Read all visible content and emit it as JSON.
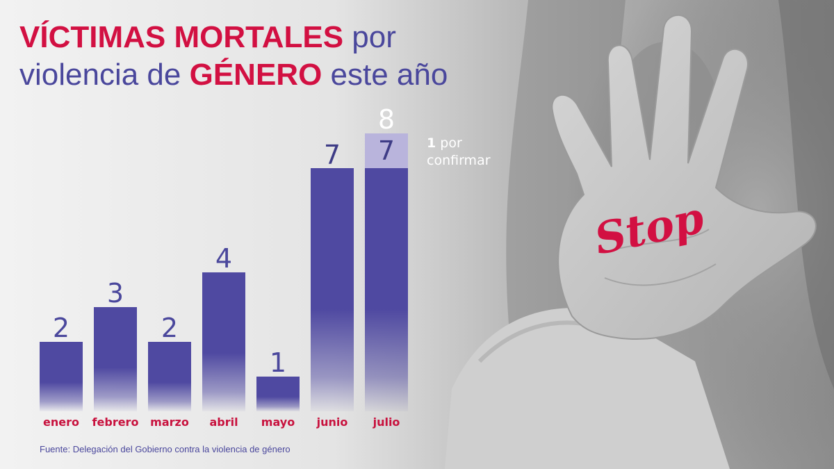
{
  "title": {
    "line1_strong": "VÍCTIMAS MORTALES",
    "line1_rest": " por",
    "line2_start": "violencia de ",
    "line2_strong": "GÉNERO",
    "line2_end": " este año"
  },
  "chart_data": {
    "type": "bar",
    "categories": [
      "enero",
      "febrero",
      "marzo",
      "abril",
      "mayo",
      "junio",
      "julio"
    ],
    "series": [
      {
        "name": "",
        "values": [
          2,
          3,
          2,
          4,
          1,
          7,
          7
        ]
      },
      {
        "name": "por confirmar",
        "values": [
          0,
          0,
          0,
          0,
          0,
          0,
          1
        ]
      }
    ],
    "value_labels": [
      "2",
      "3",
      "2",
      "4",
      "1",
      "7",
      "7"
    ],
    "pending_value_label": "8",
    "pending_note": {
      "number": "1",
      "text_1": " por",
      "text_2": "confirmar"
    },
    "ylim": [
      0,
      8
    ],
    "title": "",
    "xlabel": "",
    "ylabel": "",
    "grid": false,
    "colors": {
      "bar": "#4f49a1",
      "pending": "#b9b4dc",
      "category": "#c8123e"
    }
  },
  "photo": {
    "sign_text": "Stop"
  },
  "source": "Fuente: Delegación del Gobierno contra la violencia de género",
  "colors": {
    "accent": "#d21042",
    "primary": "#4a479c"
  }
}
